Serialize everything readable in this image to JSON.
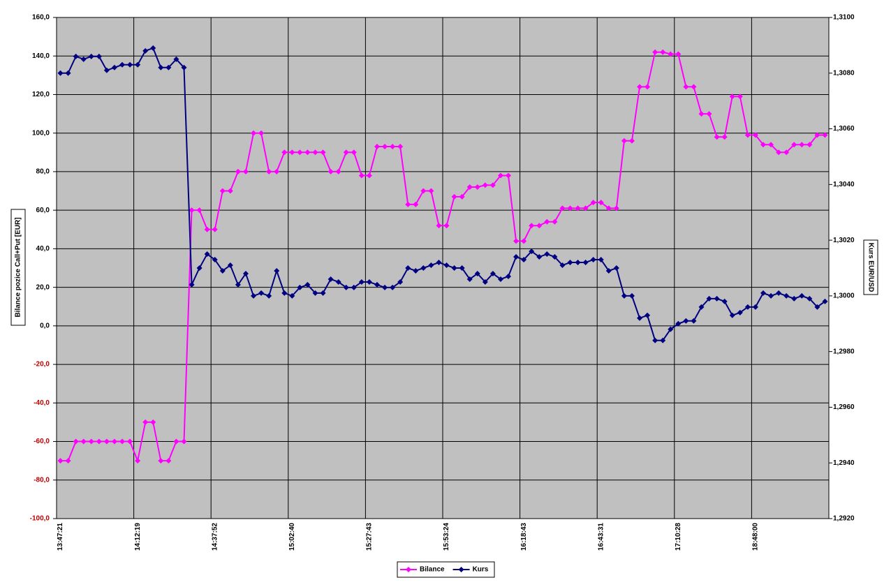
{
  "chart_data": {
    "type": "line",
    "y_label": "Bilance pozice Call+Put [EUR]",
    "y2_label": "Kurs EUR/USD",
    "categories": [
      "13:47:21",
      null,
      null,
      null,
      null,
      null,
      null,
      null,
      null,
      null,
      "14:12:19",
      null,
      null,
      null,
      null,
      null,
      null,
      null,
      null,
      null,
      "14:37:52",
      null,
      null,
      null,
      null,
      null,
      null,
      null,
      null,
      null,
      "15:02:40",
      null,
      null,
      null,
      null,
      null,
      null,
      null,
      null,
      null,
      "15:27:43",
      null,
      null,
      null,
      null,
      null,
      null,
      null,
      null,
      null,
      "15:53:24",
      null,
      null,
      null,
      null,
      null,
      null,
      null,
      null,
      null,
      "16:18:43",
      null,
      null,
      null,
      null,
      null,
      null,
      null,
      null,
      null,
      "16:43:31",
      null,
      null,
      null,
      null,
      null,
      null,
      null,
      null,
      null,
      "17:10:28",
      null,
      null,
      null,
      null,
      null,
      null,
      null,
      null,
      null,
      "18:48:00",
      null,
      null,
      null,
      null,
      null,
      null,
      null,
      null,
      null
    ],
    "series": [
      {
        "name": "Bilance",
        "color": "#ff00ff",
        "values": [
          -70,
          -70,
          -60,
          -60,
          -60,
          -60,
          -60,
          -60,
          -60,
          -60,
          -70,
          -50,
          -50,
          -70,
          -70,
          -60,
          -60,
          60,
          60,
          50,
          50,
          70,
          70,
          80,
          80,
          100,
          100,
          80,
          80,
          90,
          90,
          90,
          90,
          90,
          90,
          80,
          80,
          90,
          90,
          78,
          78,
          93,
          93,
          93,
          93,
          63,
          63,
          70,
          70,
          52,
          52,
          67,
          67,
          72,
          72,
          73,
          73,
          78,
          78,
          44,
          44,
          52,
          52,
          54,
          54,
          61,
          61,
          61,
          61,
          64,
          64,
          61,
          61,
          96,
          96,
          124,
          124,
          142,
          142,
          141,
          141,
          124,
          124,
          110,
          110,
          98,
          98,
          119,
          119,
          99,
          99,
          94,
          94,
          90,
          90,
          94,
          94,
          94,
          99,
          99
        ]
      },
      {
        "name": "Kurs",
        "color": "#000080",
        "axis": "y2",
        "values": [
          1.308,
          1.308,
          1.3086,
          1.3085,
          1.3086,
          1.3086,
          1.3081,
          1.3082,
          1.3083,
          1.3083,
          1.3083,
          1.3088,
          1.3089,
          1.3082,
          1.3082,
          1.3085,
          1.3082,
          1.3004,
          1.301,
          1.3015,
          1.3013,
          1.3009,
          1.3011,
          1.3004,
          1.3008,
          1.3,
          1.3001,
          1.3,
          1.3009,
          1.3001,
          1.3,
          1.3003,
          1.3004,
          1.3001,
          1.3001,
          1.3006,
          1.3005,
          1.3003,
          1.3003,
          1.3005,
          1.3005,
          1.3004,
          1.3003,
          1.3003,
          1.3005,
          1.301,
          1.3009,
          1.301,
          1.3011,
          1.3012,
          1.3011,
          1.301,
          1.301,
          1.3006,
          1.3008,
          1.3005,
          1.3008,
          1.3006,
          1.3007,
          1.3014,
          1.3013,
          1.3016,
          1.3014,
          1.3015,
          1.3014,
          1.3011,
          1.3012,
          1.3012,
          1.3012,
          1.3013,
          1.3013,
          1.3009,
          1.301,
          1.3,
          1.3,
          1.2992,
          1.2993,
          1.2984,
          1.2984,
          1.2988,
          1.299,
          1.2991,
          1.2991,
          1.2996,
          1.2999,
          1.2999,
          1.2998,
          1.2993,
          1.2994,
          1.2996,
          1.2996,
          1.3001,
          1.3,
          1.3001,
          1.3,
          1.2999,
          1.3,
          1.2999,
          1.2996,
          1.2998
        ]
      }
    ],
    "ylim": [
      -100,
      160
    ],
    "yticks": [
      {
        "value": -100,
        "label": "-100,0"
      },
      {
        "value": -80,
        "label": "-80,0"
      },
      {
        "value": -60,
        "label": "-60,0"
      },
      {
        "value": -40,
        "label": "-40,0"
      },
      {
        "value": -20,
        "label": "-20,0"
      },
      {
        "value": 0,
        "label": "0,0"
      },
      {
        "value": 20,
        "label": "20,0"
      },
      {
        "value": 40,
        "label": "40,0"
      },
      {
        "value": 60,
        "label": "60,0"
      },
      {
        "value": 80,
        "label": "80,0"
      },
      {
        "value": 100,
        "label": "100,0"
      },
      {
        "value": 120,
        "label": "120,0"
      },
      {
        "value": 140,
        "label": "140,0"
      },
      {
        "value": 160,
        "label": "160,0"
      }
    ],
    "y2lim": [
      1.292,
      1.31
    ],
    "y2ticks": [
      {
        "value": 1.292,
        "label": "1,2920"
      },
      {
        "value": 1.294,
        "label": "1,2940"
      },
      {
        "value": 1.296,
        "label": "1,2960"
      },
      {
        "value": 1.298,
        "label": "1,2980"
      },
      {
        "value": 1.3,
        "label": "1,3000"
      },
      {
        "value": 1.302,
        "label": "1,3020"
      },
      {
        "value": 1.304,
        "label": "1,3040"
      },
      {
        "value": 1.306,
        "label": "1,3060"
      },
      {
        "value": 1.308,
        "label": "1,3080"
      },
      {
        "value": 1.31,
        "label": "1,3100"
      }
    ],
    "grid": true,
    "legend": "bottom"
  }
}
